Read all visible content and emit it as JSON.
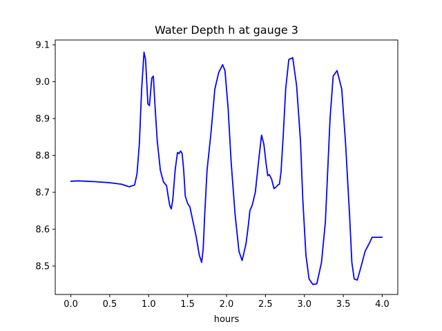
{
  "chart_data": {
    "type": "line",
    "title": "Water Depth h at gauge 3",
    "xlabel": "hours",
    "ylabel": "",
    "xlim": [
      -0.2,
      4.2
    ],
    "ylim": [
      8.423,
      9.113
    ],
    "grid": false,
    "legend": "none",
    "x_ticks": [
      0.0,
      0.5,
      1.0,
      1.5,
      2.0,
      2.5,
      3.0,
      3.5,
      4.0
    ],
    "x_tick_labels": [
      "0.0",
      "0.5",
      "1.0",
      "1.5",
      "2.0",
      "2.5",
      "3.0",
      "3.5",
      "4.0"
    ],
    "y_ticks": [
      8.5,
      8.6,
      8.7,
      8.8,
      8.9,
      9.0,
      9.1
    ],
    "y_tick_labels": [
      "8.5",
      "8.6",
      "8.7",
      "8.8",
      "8.9",
      "9.0",
      "9.1"
    ],
    "series": [
      {
        "color": "#0000ff",
        "x": [
          0.0,
          0.1,
          0.3,
          0.5,
          0.65,
          0.75,
          0.82,
          0.85,
          0.88,
          0.91,
          0.94,
          0.96,
          0.99,
          1.01,
          1.04,
          1.06,
          1.08,
          1.11,
          1.15,
          1.19,
          1.23,
          1.25,
          1.27,
          1.29,
          1.31,
          1.34,
          1.37,
          1.39,
          1.41,
          1.43,
          1.45,
          1.47,
          1.5,
          1.53,
          1.57,
          1.61,
          1.65,
          1.68,
          1.7,
          1.72,
          1.75,
          1.8,
          1.85,
          1.9,
          1.95,
          1.98,
          2.02,
          2.06,
          2.11,
          2.16,
          2.2,
          2.25,
          2.28,
          2.3,
          2.33,
          2.37,
          2.42,
          2.45,
          2.48,
          2.51,
          2.53,
          2.55,
          2.58,
          2.61,
          2.64,
          2.66,
          2.68,
          2.7,
          2.73,
          2.76,
          2.8,
          2.85,
          2.9,
          2.95,
          2.98,
          3.02,
          3.06,
          3.11,
          3.16,
          3.22,
          3.27,
          3.3,
          3.33,
          3.37,
          3.42,
          3.48,
          3.53,
          3.58,
          3.61,
          3.64,
          3.68,
          3.73,
          3.78,
          3.83,
          3.87,
          3.9,
          3.93,
          3.97,
          4.0
        ],
        "y": [
          8.73,
          8.731,
          8.729,
          8.726,
          8.722,
          8.715,
          8.72,
          8.75,
          8.83,
          8.98,
          9.08,
          9.06,
          8.94,
          8.935,
          9.01,
          9.015,
          8.94,
          8.84,
          8.76,
          8.728,
          8.718,
          8.69,
          8.665,
          8.655,
          8.68,
          8.76,
          8.808,
          8.805,
          8.812,
          8.805,
          8.76,
          8.69,
          8.67,
          8.66,
          8.62,
          8.58,
          8.53,
          8.51,
          8.545,
          8.64,
          8.76,
          8.86,
          8.98,
          9.025,
          9.046,
          9.03,
          8.93,
          8.78,
          8.64,
          8.54,
          8.515,
          8.56,
          8.61,
          8.65,
          8.665,
          8.7,
          8.8,
          8.855,
          8.83,
          8.775,
          8.745,
          8.748,
          8.735,
          8.71,
          8.715,
          8.72,
          8.722,
          8.755,
          8.86,
          8.98,
          9.06,
          9.065,
          8.99,
          8.84,
          8.68,
          8.53,
          8.465,
          8.45,
          8.452,
          8.51,
          8.62,
          8.76,
          8.9,
          9.015,
          9.03,
          8.98,
          8.83,
          8.64,
          8.51,
          8.465,
          8.462,
          8.5,
          8.54,
          8.56,
          8.578,
          8.578,
          8.578,
          8.578,
          8.578
        ]
      }
    ]
  }
}
